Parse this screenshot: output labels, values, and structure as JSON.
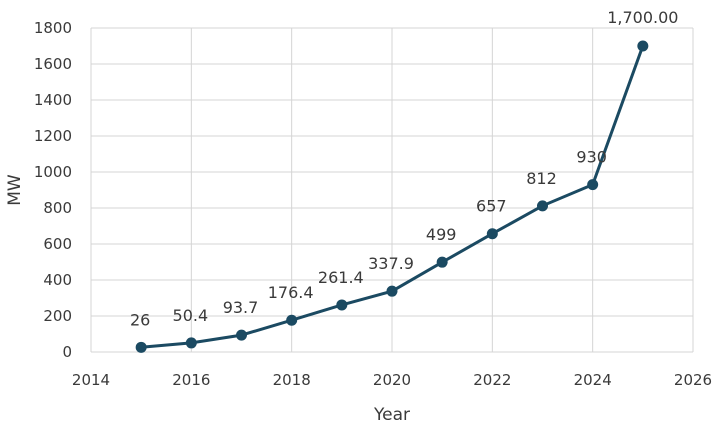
{
  "chart_data": {
    "type": "line",
    "xlabel": "Year",
    "ylabel": "MW",
    "xlim": [
      2014,
      2026
    ],
    "ylim": [
      0,
      1800
    ],
    "x_ticks": [
      "2014",
      "2016",
      "2018",
      "2020",
      "2022",
      "2024",
      "2026"
    ],
    "y_ticks": [
      "0",
      "200",
      "400",
      "600",
      "800",
      "1000",
      "1200",
      "1400",
      "1600",
      "1800"
    ],
    "grid": true,
    "legend": "none",
    "series": [
      {
        "x": [
          2015,
          2016,
          2017,
          2018,
          2019,
          2020,
          2021,
          2022,
          2023,
          2024,
          2025
        ],
        "y": [
          26,
          50.4,
          93.7,
          176.4,
          261.4,
          337.9,
          499,
          657,
          812,
          930,
          1700
        ],
        "labels": [
          "26",
          "50.4",
          "93.7",
          "176.4",
          "261.4",
          "337.9",
          "499",
          "657",
          "812",
          "930",
          "1,700.00"
        ],
        "color": "#1b4a62"
      }
    ],
    "colors": {
      "line": "#1b4a62",
      "grid": "#d4d4d4",
      "text": "#3a3a3a"
    }
  }
}
